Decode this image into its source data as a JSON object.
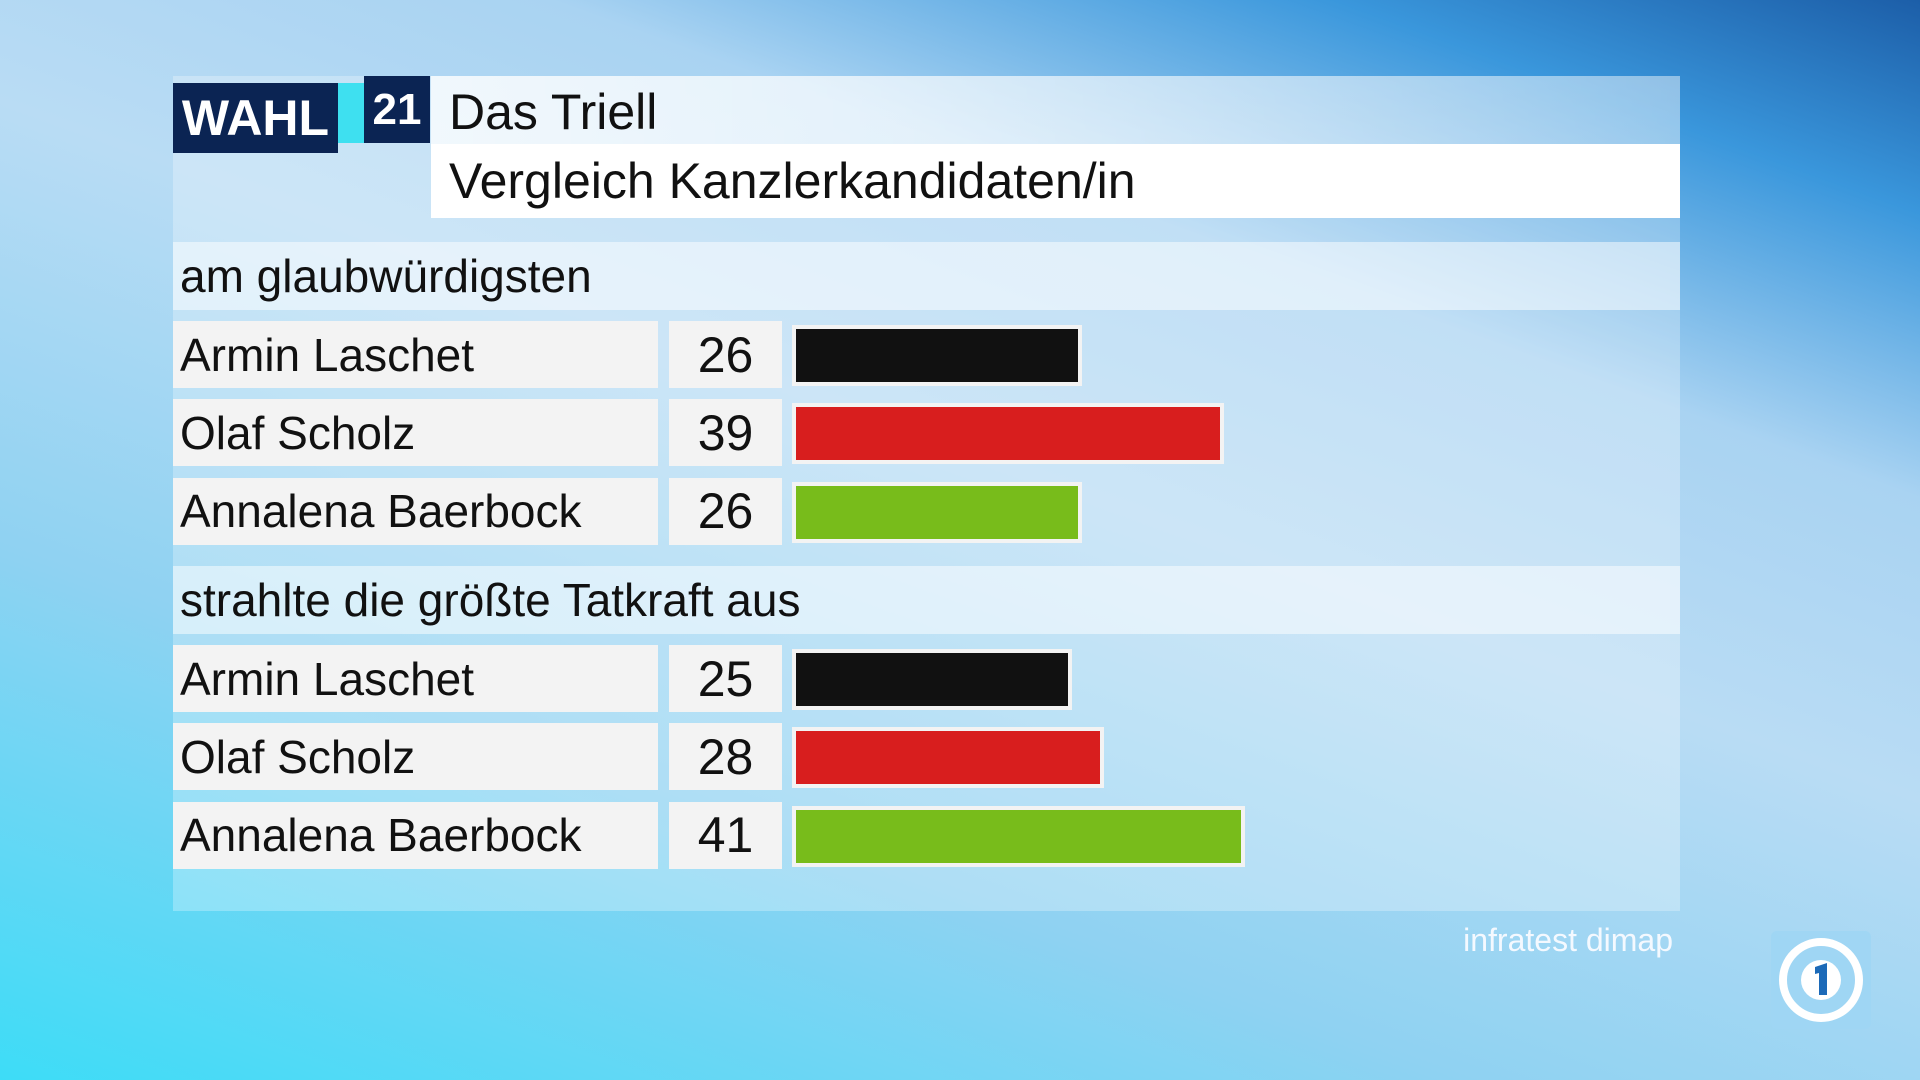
{
  "header": {
    "logo_word": "WAHL",
    "logo_number": "21",
    "kicker": "Das Triell",
    "title": "Vergleich Kanzlerkandidaten/in"
  },
  "source": "infratest dimap",
  "chart_data": [
    {
      "type": "bar",
      "title": "am glaubwürdigsten",
      "categories": [
        "Armin Laschet",
        "Olaf Scholz",
        "Annalena Baerbock"
      ],
      "values": [
        26,
        39,
        26
      ],
      "colors": [
        "#111111",
        "#d81e1e",
        "#78bc1b"
      ]
    },
    {
      "type": "bar",
      "title": "strahlte die größte Tatkraft aus",
      "categories": [
        "Armin Laschet",
        "Olaf Scholz",
        "Annalena Baerbock"
      ],
      "values": [
        25,
        28,
        41
      ],
      "colors": [
        "#111111",
        "#d81e1e",
        "#78bc1b"
      ]
    }
  ]
}
